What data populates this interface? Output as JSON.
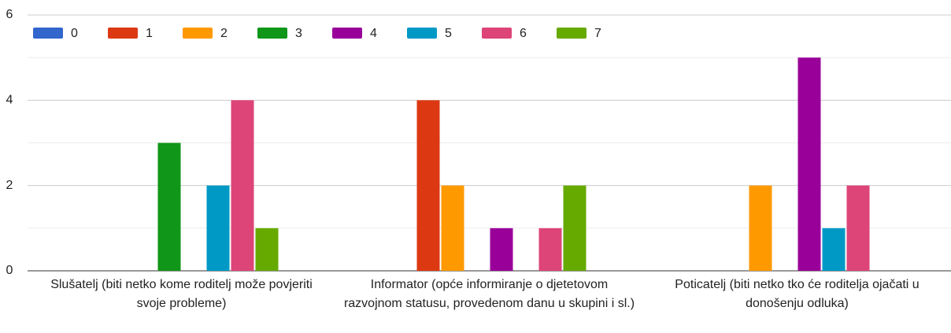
{
  "chart_data": {
    "type": "bar",
    "categories": [
      "Slušatelj (biti netko kome roditelj može povjeriti svoje probleme)",
      "Informator (opće informiranje o djetetovom razvojnom statusu, provedenom danu u skupini i sl.)",
      "Poticatelj (biti netko tko će roditelja ojačati u donošenju odluka)"
    ],
    "series": [
      {
        "name": "0",
        "color": "#3366cc",
        "values": [
          0,
          0,
          0
        ]
      },
      {
        "name": "1",
        "color": "#dc3912",
        "values": [
          0,
          4,
          0
        ]
      },
      {
        "name": "2",
        "color": "#ff9900",
        "values": [
          0,
          2,
          2
        ]
      },
      {
        "name": "3",
        "color": "#109618",
        "values": [
          3,
          0,
          0
        ]
      },
      {
        "name": "4",
        "color": "#990099",
        "values": [
          0,
          1,
          5
        ]
      },
      {
        "name": "5",
        "color": "#0099c6",
        "values": [
          2,
          0,
          1
        ]
      },
      {
        "name": "6",
        "color": "#dd4477",
        "values": [
          4,
          1,
          2
        ]
      },
      {
        "name": "7",
        "color": "#66aa00",
        "values": [
          1,
          2,
          0
        ]
      }
    ],
    "ylim": [
      0,
      6
    ],
    "yticks": [
      0,
      2,
      4,
      6
    ],
    "grid": true,
    "legend": "top"
  }
}
